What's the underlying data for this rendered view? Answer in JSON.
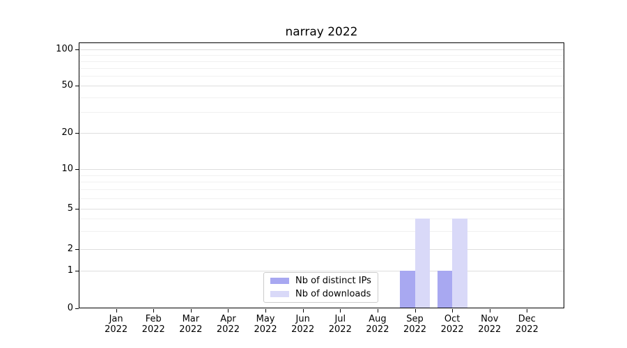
{
  "chart_data": {
    "type": "bar",
    "title": "narray 2022",
    "xlabel": "",
    "ylabel": "",
    "categories": [
      "Jan",
      "Feb",
      "Mar",
      "Apr",
      "May",
      "Jun",
      "Jul",
      "Aug",
      "Sep",
      "Oct",
      "Nov",
      "Dec"
    ],
    "x_tick_year": "2022",
    "yscale": "symlog",
    "yticks": [
      0,
      1,
      2,
      5,
      10,
      20,
      50,
      100
    ],
    "minor_yticks": [
      3,
      4,
      6,
      7,
      8,
      9,
      30,
      40,
      60,
      70,
      80,
      90
    ],
    "ylim": [
      0,
      115
    ],
    "grid": true,
    "legend_position": "lower center",
    "series": [
      {
        "name": "Nb of distinct IPs",
        "color": "#a8a8f1",
        "values": [
          0,
          0,
          0,
          0,
          0,
          0,
          0,
          0,
          1,
          1,
          0,
          0
        ]
      },
      {
        "name": "Nb of downloads",
        "color": "#d9d9f8",
        "values": [
          0,
          0,
          0,
          0,
          0,
          0,
          0,
          0,
          4,
          4,
          0,
          0
        ]
      }
    ]
  },
  "colors": {
    "grid_major": "#dedede",
    "grid_minor": "#f1f1f1",
    "axis": "#000000",
    "legend_border": "#cccccc",
    "background": "#ffffff"
  }
}
